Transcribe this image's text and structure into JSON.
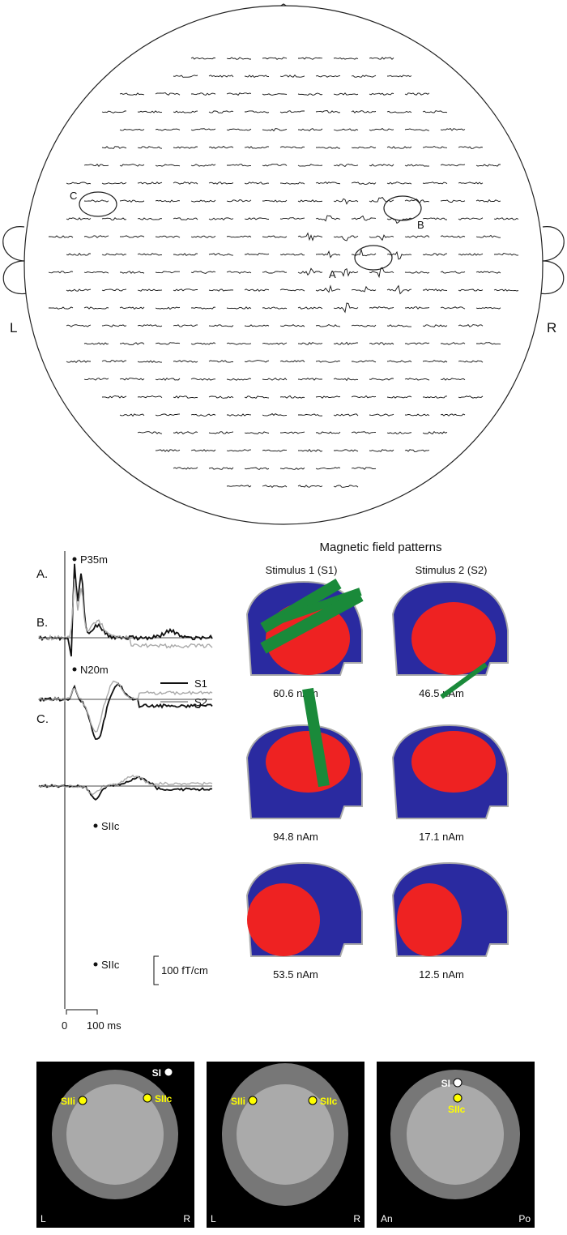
{
  "head_map": {
    "left": "L",
    "right": "R",
    "marked_channels": [
      "A",
      "B",
      "C"
    ]
  },
  "waveforms": {
    "rows": [
      {
        "label": "A.",
        "peaks": [
          "P35m",
          "N20m"
        ]
      },
      {
        "label": "B.",
        "peaks": [
          "SIIc"
        ]
      },
      {
        "label": "C.",
        "peaks": [
          "SIIc"
        ]
      }
    ],
    "legend": [
      "S1",
      "S2"
    ],
    "scale": {
      "amplitude": "100 fT/cm",
      "time_zero": "0",
      "time": "100 ms"
    }
  },
  "field_patterns": {
    "title": "Magnetic field patterns",
    "columns": [
      "Stimulus 1 (S1)",
      "Stimulus 2 (S2)"
    ],
    "moments": [
      [
        "60.6 nAm",
        "46.5 nAm"
      ],
      [
        "94.8 nAm",
        "17.1 nAm"
      ],
      [
        "53.5 nAm",
        "12.5 nAm"
      ]
    ]
  },
  "mri": [
    {
      "labels": [
        "SI",
        "SIIi",
        "SIIc"
      ],
      "corners": [
        "L",
        "R"
      ]
    },
    {
      "labels": [
        "SIIi",
        "SIIc"
      ],
      "corners": [
        "L",
        "R"
      ]
    },
    {
      "labels": [
        "SI",
        "SIIc"
      ],
      "corners": [
        "An",
        "Po"
      ]
    }
  ]
}
